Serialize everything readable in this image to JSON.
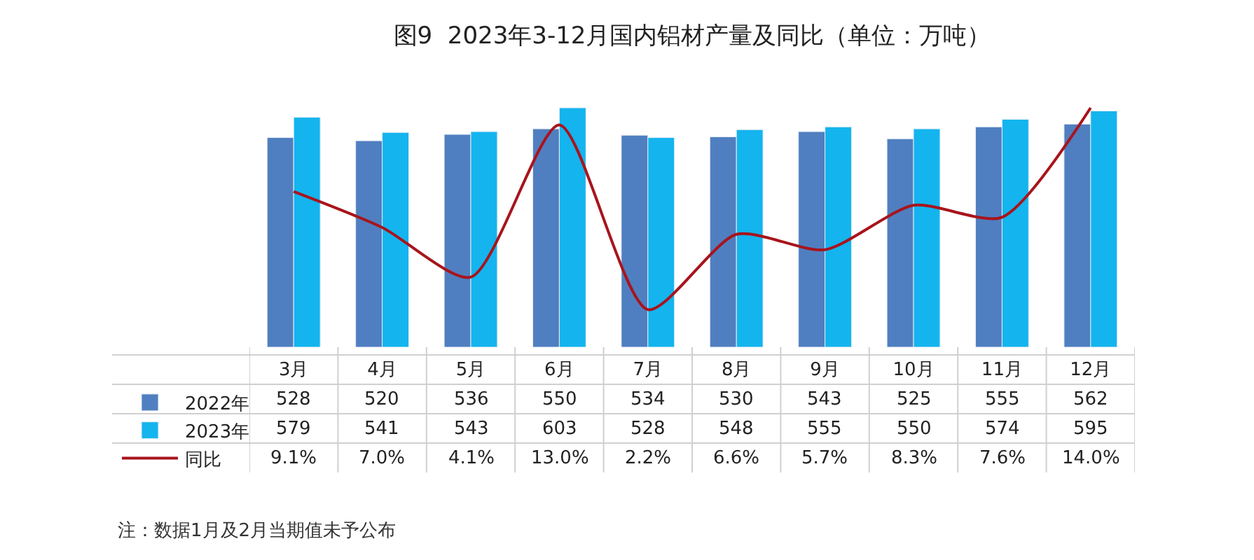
{
  "chart_data": {
    "type": "bar",
    "title": "图9  2023年3-12月国内铝材产量及同比（单位：万吨）",
    "categories": [
      "3月",
      "4月",
      "5月",
      "6月",
      "7月",
      "8月",
      "9月",
      "10月",
      "11月",
      "12月"
    ],
    "series": [
      {
        "name": "2022年",
        "color": "#4f7fc0",
        "values": [
          528,
          520,
          536,
          550,
          534,
          530,
          543,
          525,
          555,
          562
        ],
        "value_labels": [
          "528",
          "520",
          "536",
          "550",
          "534",
          "530",
          "543",
          "525",
          "555",
          "562"
        ]
      },
      {
        "name": "2023年",
        "color": "#14b4ee",
        "values": [
          579,
          541,
          543,
          603,
          528,
          548,
          555,
          550,
          574,
          595
        ],
        "value_labels": [
          "579",
          "541",
          "543",
          "603",
          "528",
          "548",
          "555",
          "550",
          "574",
          "595"
        ]
      },
      {
        "name": "同比",
        "type": "line",
        "axis": "y2",
        "color": "#a8141c",
        "values": [
          9.1,
          7.0,
          4.1,
          13.0,
          2.2,
          6.6,
          5.7,
          8.3,
          7.6,
          14.0
        ],
        "value_labels": [
          "9.1%",
          "7.0%",
          "4.1%",
          "13.0%",
          "2.2%",
          "6.6%",
          "5.7%",
          "8.3%",
          "7.6%",
          "14.0%"
        ]
      }
    ],
    "annotations": [
      "注：数据1月及2月当期值未予公布"
    ],
    "legend": "left"
  }
}
